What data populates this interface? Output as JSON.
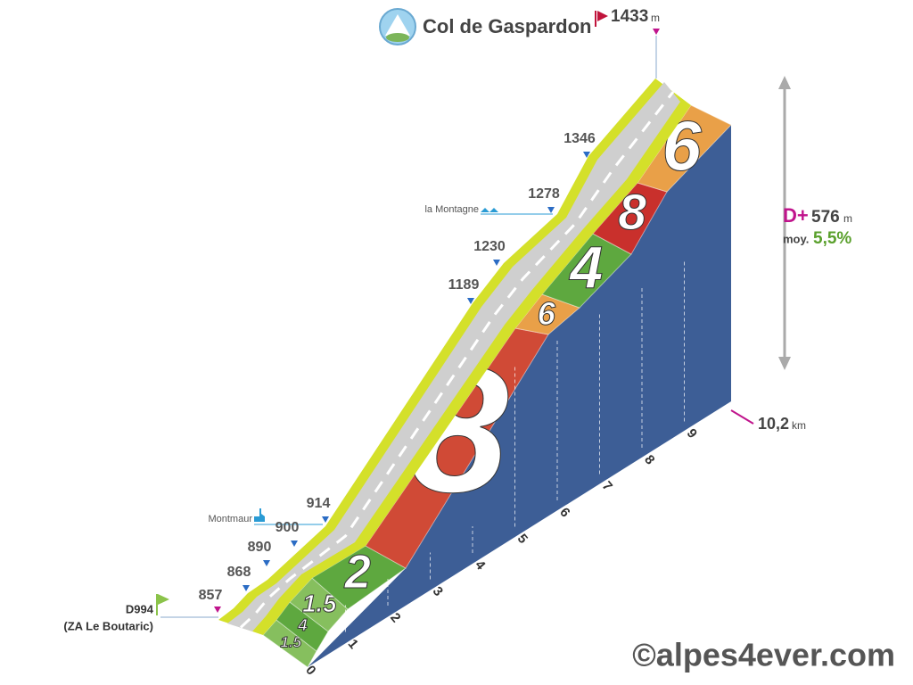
{
  "summit": {
    "name": "Col de Gaspardon",
    "altitude": "1433",
    "unit": "m"
  },
  "start": {
    "road": "D994",
    "place": "(ZA Le Boutaric)",
    "altitude": "857"
  },
  "altitudes": [
    "868",
    "890",
    "900",
    "914",
    "1189",
    "1230",
    "1278",
    "1346"
  ],
  "places": [
    "Montmaur",
    "la Montagne"
  ],
  "gradients": [
    "1.5",
    "4",
    "1.5",
    "2",
    "8",
    "6",
    "4",
    "8",
    "6"
  ],
  "km_labels": [
    "0",
    "1",
    "2",
    "3",
    "4",
    "5",
    "6",
    "7",
    "8",
    "9"
  ],
  "distance": {
    "value": "10,2",
    "unit": "km"
  },
  "stats": {
    "gain_label": "D+",
    "gain": "576",
    "gain_unit": "m",
    "avg_label": "moy.",
    "avg": "5,5%"
  },
  "credit": "©alpes4ever.com"
}
